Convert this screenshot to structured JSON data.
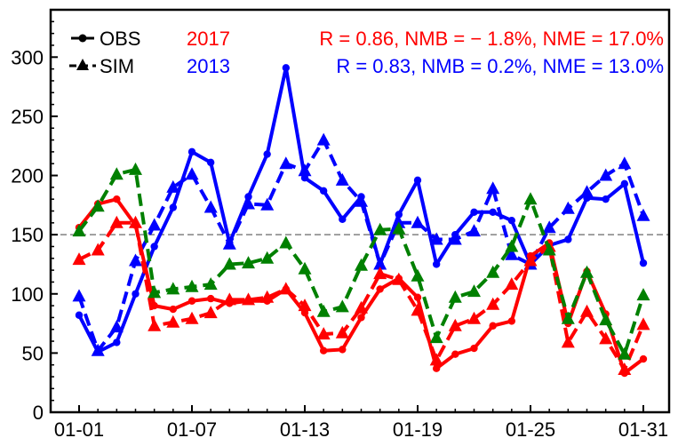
{
  "chart_data": {
    "type": "line",
    "x": [
      "01-01",
      "01-02",
      "01-03",
      "01-04",
      "01-05",
      "01-06",
      "01-07",
      "01-08",
      "01-09",
      "01-10",
      "01-11",
      "01-12",
      "01-13",
      "01-14",
      "01-15",
      "01-16",
      "01-17",
      "01-18",
      "01-19",
      "01-20",
      "01-21",
      "01-22",
      "01-23",
      "01-24",
      "01-25",
      "01-26",
      "01-27",
      "01-28",
      "01-29",
      "01-30",
      "01-31"
    ],
    "xticks": [
      "01-01",
      "01-07",
      "01-13",
      "01-19",
      "01-25",
      "01-31"
    ],
    "ylim": [
      0,
      340
    ],
    "yticks": [
      0,
      50,
      100,
      150,
      200,
      250,
      300
    ],
    "reference_line": 150,
    "grid": false,
    "legend": {
      "placement": "top-left",
      "entries": [
        {
          "label": "OBS",
          "line": "solid",
          "marker": "circle"
        },
        {
          "label": "SIM",
          "line": "dashed",
          "marker": "triangle"
        }
      ]
    },
    "annotations": [
      {
        "year": "2017",
        "stats": "R = 0.86,  NMB = − 1.8%,  NME = 17.0%",
        "color": "#ff0000"
      },
      {
        "year": "2013",
        "stats": "R = 0.83,  NMB = 0.2%,  NME = 13.0%",
        "color": "#0000ff"
      }
    ],
    "series": [
      {
        "key": "blue-obs",
        "color": "#0000ff",
        "style": "solid",
        "marker": "circle",
        "values": [
          82,
          51,
          59,
          100,
          140,
          173,
          220,
          211,
          143,
          182,
          218,
          291,
          198,
          187,
          163,
          182,
          125,
          167,
          196,
          125,
          150,
          169,
          169,
          162,
          125,
          141,
          146,
          181,
          180,
          193,
          126
        ]
      },
      {
        "key": "blue-sim",
        "color": "#0000ff",
        "style": "dashed",
        "marker": "triangle",
        "values": [
          98,
          52,
          72,
          128,
          158,
          190,
          201,
          173,
          142,
          176,
          175,
          210,
          204,
          230,
          196,
          178,
          125,
          160,
          160,
          146,
          146,
          153,
          189,
          133,
          125,
          156,
          172,
          186,
          200,
          210,
          166
        ]
      },
      {
        "key": "red-obs",
        "color": "#ff0000",
        "style": "solid",
        "marker": "circle",
        "values": [
          156,
          176,
          180,
          158,
          90,
          87,
          94,
          96,
          92,
          94,
          94,
          104,
          84,
          52,
          53,
          80,
          104,
          113,
          97,
          37,
          49,
          54,
          73,
          77,
          132,
          143,
          75,
          119,
          83,
          33,
          45
        ]
      },
      {
        "key": "red-sim",
        "color": "#ff0000",
        "style": "dashed",
        "marker": "triangle",
        "values": [
          129,
          137,
          160,
          160,
          73,
          76,
          79,
          84,
          95,
          95,
          97,
          104,
          90,
          66,
          67,
          88,
          117,
          112,
          86,
          44,
          73,
          79,
          91,
          108,
          128,
          140,
          59,
          85,
          62,
          36,
          74
        ]
      },
      {
        "key": "green-sim",
        "color": "#008000",
        "style": "dashed",
        "marker": "triangle",
        "values": [
          153,
          174,
          201,
          205,
          101,
          104,
          106,
          108,
          125,
          126,
          130,
          143,
          121,
          85,
          89,
          124,
          154,
          155,
          115,
          63,
          97,
          102,
          118,
          140,
          180,
          137,
          79,
          118,
          78,
          49,
          99
        ]
      }
    ]
  }
}
